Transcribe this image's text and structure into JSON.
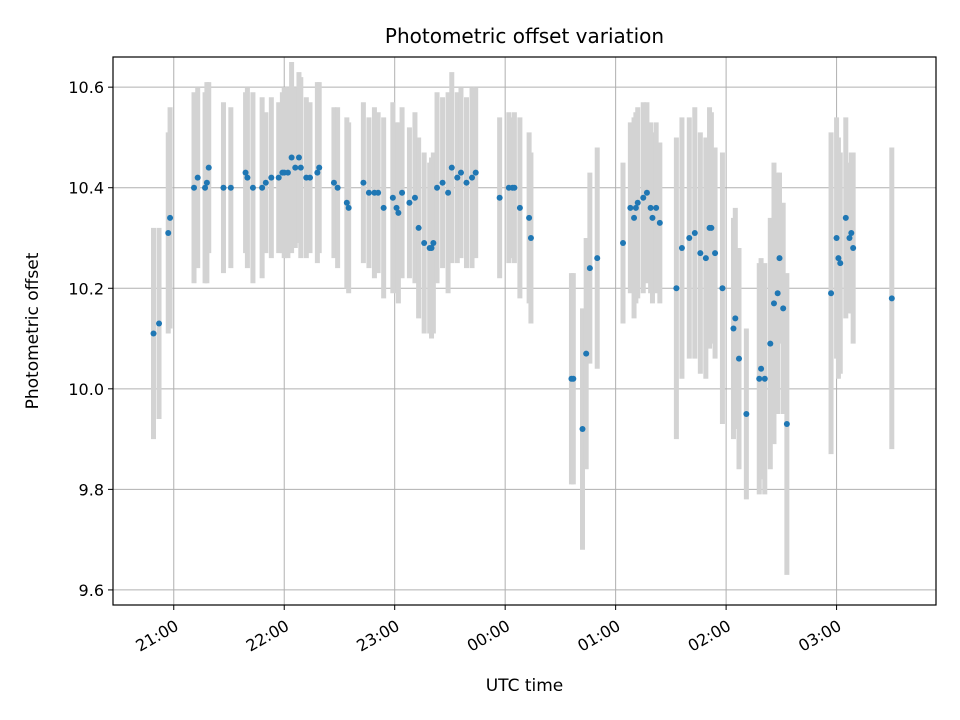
{
  "chart_data": {
    "type": "scatter",
    "title": "Photometric offset variation",
    "xlabel": "UTC time",
    "ylabel": "Photometric offset",
    "x_format": "HH:MM (UTC, spans midnight)",
    "xlim": [
      "20:27",
      "03:54"
    ],
    "ylim": [
      9.57,
      10.66
    ],
    "x_ticks": [
      "21:00",
      "22:00",
      "23:00",
      "00:00",
      "01:00",
      "02:00",
      "03:00"
    ],
    "y_ticks": [
      "9.6",
      "9.8",
      "10.0",
      "10.2",
      "10.4",
      "10.6"
    ],
    "grid": true,
    "marker_color": "#1f77b4",
    "errorbar_color": "#d3d3d3",
    "series": [
      {
        "points": [
          {
            "x": "20:49",
            "y": 10.11,
            "err": 0.21
          },
          {
            "x": "20:52",
            "y": 10.13,
            "err": 0.19
          },
          {
            "x": "20:57",
            "y": 10.31,
            "err": 0.2
          },
          {
            "x": "20:58",
            "y": 10.34,
            "err": 0.22
          },
          {
            "x": "21:11",
            "y": 10.4,
            "err": 0.19
          },
          {
            "x": "21:13",
            "y": 10.42,
            "err": 0.18
          },
          {
            "x": "21:17",
            "y": 10.4,
            "err": 0.19
          },
          {
            "x": "21:18",
            "y": 10.41,
            "err": 0.2
          },
          {
            "x": "21:19",
            "y": 10.44,
            "err": 0.17
          },
          {
            "x": "21:27",
            "y": 10.4,
            "err": 0.17
          },
          {
            "x": "21:31",
            "y": 10.4,
            "err": 0.16
          },
          {
            "x": "21:39",
            "y": 10.43,
            "err": 0.16
          },
          {
            "x": "21:40",
            "y": 10.42,
            "err": 0.18
          },
          {
            "x": "21:43",
            "y": 10.4,
            "err": 0.19
          },
          {
            "x": "21:48",
            "y": 10.4,
            "err": 0.18
          },
          {
            "x": "21:50",
            "y": 10.41,
            "err": 0.14
          },
          {
            "x": "21:53",
            "y": 10.42,
            "err": 0.16
          },
          {
            "x": "21:57",
            "y": 10.42,
            "err": 0.15
          },
          {
            "x": "21:59",
            "y": 10.43,
            "err": 0.16
          },
          {
            "x": "22:00",
            "y": 10.43,
            "err": 0.17
          },
          {
            "x": "22:02",
            "y": 10.43,
            "err": 0.17
          },
          {
            "x": "22:04",
            "y": 10.46,
            "err": 0.19
          },
          {
            "x": "22:06",
            "y": 10.44,
            "err": 0.16
          },
          {
            "x": "22:08",
            "y": 10.46,
            "err": 0.17
          },
          {
            "x": "22:09",
            "y": 10.44,
            "err": 0.18
          },
          {
            "x": "22:12",
            "y": 10.42,
            "err": 0.16
          },
          {
            "x": "22:14",
            "y": 10.42,
            "err": 0.15
          },
          {
            "x": "22:18",
            "y": 10.43,
            "err": 0.18
          },
          {
            "x": "22:19",
            "y": 10.44,
            "err": 0.17
          },
          {
            "x": "22:27",
            "y": 10.41,
            "err": 0.15
          },
          {
            "x": "22:29",
            "y": 10.4,
            "err": 0.16
          },
          {
            "x": "22:34",
            "y": 10.37,
            "err": 0.17
          },
          {
            "x": "22:35",
            "y": 10.36,
            "err": 0.17
          },
          {
            "x": "22:43",
            "y": 10.41,
            "err": 0.16
          },
          {
            "x": "22:46",
            "y": 10.39,
            "err": 0.15
          },
          {
            "x": "22:49",
            "y": 10.39,
            "err": 0.17
          },
          {
            "x": "22:51",
            "y": 10.39,
            "err": 0.16
          },
          {
            "x": "22:54",
            "y": 10.36,
            "err": 0.18
          },
          {
            "x": "22:59",
            "y": 10.38,
            "err": 0.19
          },
          {
            "x": "23:01",
            "y": 10.36,
            "err": 0.17
          },
          {
            "x": "23:02",
            "y": 10.35,
            "err": 0.18
          },
          {
            "x": "23:04",
            "y": 10.39,
            "err": 0.17
          },
          {
            "x": "23:08",
            "y": 10.37,
            "err": 0.15
          },
          {
            "x": "23:11",
            "y": 10.38,
            "err": 0.17
          },
          {
            "x": "23:13",
            "y": 10.32,
            "err": 0.18
          },
          {
            "x": "23:16",
            "y": 10.29,
            "err": 0.18
          },
          {
            "x": "23:19",
            "y": 10.28,
            "err": 0.17
          },
          {
            "x": "23:20",
            "y": 10.28,
            "err": 0.18
          },
          {
            "x": "23:21",
            "y": 10.29,
            "err": 0.18
          },
          {
            "x": "23:23",
            "y": 10.4,
            "err": 0.19
          },
          {
            "x": "23:26",
            "y": 10.41,
            "err": 0.17
          },
          {
            "x": "23:29",
            "y": 10.39,
            "err": 0.2
          },
          {
            "x": "23:31",
            "y": 10.44,
            "err": 0.19
          },
          {
            "x": "23:34",
            "y": 10.42,
            "err": 0.17
          },
          {
            "x": "23:36",
            "y": 10.43,
            "err": 0.17
          },
          {
            "x": "23:39",
            "y": 10.41,
            "err": 0.17
          },
          {
            "x": "23:42",
            "y": 10.42,
            "err": 0.18
          },
          {
            "x": "23:44",
            "y": 10.43,
            "err": 0.17
          },
          {
            "x": "23:57",
            "y": 10.38,
            "err": 0.16
          },
          {
            "x": "00:02",
            "y": 10.4,
            "err": 0.15
          },
          {
            "x": "00:04",
            "y": 10.4,
            "err": 0.14
          },
          {
            "x": "00:05",
            "y": 10.4,
            "err": 0.15
          },
          {
            "x": "00:08",
            "y": 10.36,
            "err": 0.18
          },
          {
            "x": "00:13",
            "y": 10.34,
            "err": 0.17
          },
          {
            "x": "00:14",
            "y": 10.3,
            "err": 0.17
          },
          {
            "x": "00:36",
            "y": 10.02,
            "err": 0.21
          },
          {
            "x": "00:37",
            "y": 10.02,
            "err": 0.21
          },
          {
            "x": "00:42",
            "y": 9.92,
            "err": 0.24
          },
          {
            "x": "00:44",
            "y": 10.07,
            "err": 0.23
          },
          {
            "x": "00:46",
            "y": 10.24,
            "err": 0.19
          },
          {
            "x": "00:50",
            "y": 10.26,
            "err": 0.22
          },
          {
            "x": "01:04",
            "y": 10.29,
            "err": 0.16
          },
          {
            "x": "01:08",
            "y": 10.36,
            "err": 0.17
          },
          {
            "x": "01:10",
            "y": 10.34,
            "err": 0.2
          },
          {
            "x": "01:11",
            "y": 10.36,
            "err": 0.19
          },
          {
            "x": "01:12",
            "y": 10.37,
            "err": 0.19
          },
          {
            "x": "01:15",
            "y": 10.38,
            "err": 0.19
          },
          {
            "x": "01:17",
            "y": 10.39,
            "err": 0.18
          },
          {
            "x": "01:19",
            "y": 10.36,
            "err": 0.17
          },
          {
            "x": "01:20",
            "y": 10.34,
            "err": 0.17
          },
          {
            "x": "01:22",
            "y": 10.36,
            "err": 0.17
          },
          {
            "x": "01:24",
            "y": 10.33,
            "err": 0.16
          },
          {
            "x": "01:33",
            "y": 10.2,
            "err": 0.3
          },
          {
            "x": "01:36",
            "y": 10.28,
            "err": 0.26
          },
          {
            "x": "01:40",
            "y": 10.3,
            "err": 0.24
          },
          {
            "x": "01:43",
            "y": 10.31,
            "err": 0.25
          },
          {
            "x": "01:46",
            "y": 10.27,
            "err": 0.24
          },
          {
            "x": "01:49",
            "y": 10.26,
            "err": 0.24
          },
          {
            "x": "01:51",
            "y": 10.32,
            "err": 0.24
          },
          {
            "x": "01:52",
            "y": 10.32,
            "err": 0.23
          },
          {
            "x": "01:54",
            "y": 10.27,
            "err": 0.21
          },
          {
            "x": "01:58",
            "y": 10.2,
            "err": 0.27
          },
          {
            "x": "02:04",
            "y": 10.12,
            "err": 0.22
          },
          {
            "x": "02:05",
            "y": 10.14,
            "err": 0.22
          },
          {
            "x": "02:07",
            "y": 10.06,
            "err": 0.22
          },
          {
            "x": "02:11",
            "y": 9.95,
            "err": 0.17
          },
          {
            "x": "02:18",
            "y": 10.02,
            "err": 0.23
          },
          {
            "x": "02:19",
            "y": 10.04,
            "err": 0.22
          },
          {
            "x": "02:21",
            "y": 10.02,
            "err": 0.23
          },
          {
            "x": "02:24",
            "y": 10.09,
            "err": 0.25
          },
          {
            "x": "02:26",
            "y": 10.17,
            "err": 0.28
          },
          {
            "x": "02:28",
            "y": 10.19,
            "err": 0.24
          },
          {
            "x": "02:29",
            "y": 10.26,
            "err": 0.17
          },
          {
            "x": "02:31",
            "y": 10.16,
            "err": 0.21
          },
          {
            "x": "02:33",
            "y": 9.93,
            "err": 0.3
          },
          {
            "x": "02:57",
            "y": 10.19,
            "err": 0.32
          },
          {
            "x": "03:00",
            "y": 10.3,
            "err": 0.24
          },
          {
            "x": "03:01",
            "y": 10.26,
            "err": 0.24
          },
          {
            "x": "03:02",
            "y": 10.25,
            "err": 0.22
          },
          {
            "x": "03:05",
            "y": 10.34,
            "err": 0.2
          },
          {
            "x": "03:07",
            "y": 10.3,
            "err": 0.15
          },
          {
            "x": "03:08",
            "y": 10.31,
            "err": 0.16
          },
          {
            "x": "03:09",
            "y": 10.28,
            "err": 0.19
          },
          {
            "x": "03:30",
            "y": 10.18,
            "err": 0.3
          }
        ]
      }
    ]
  }
}
